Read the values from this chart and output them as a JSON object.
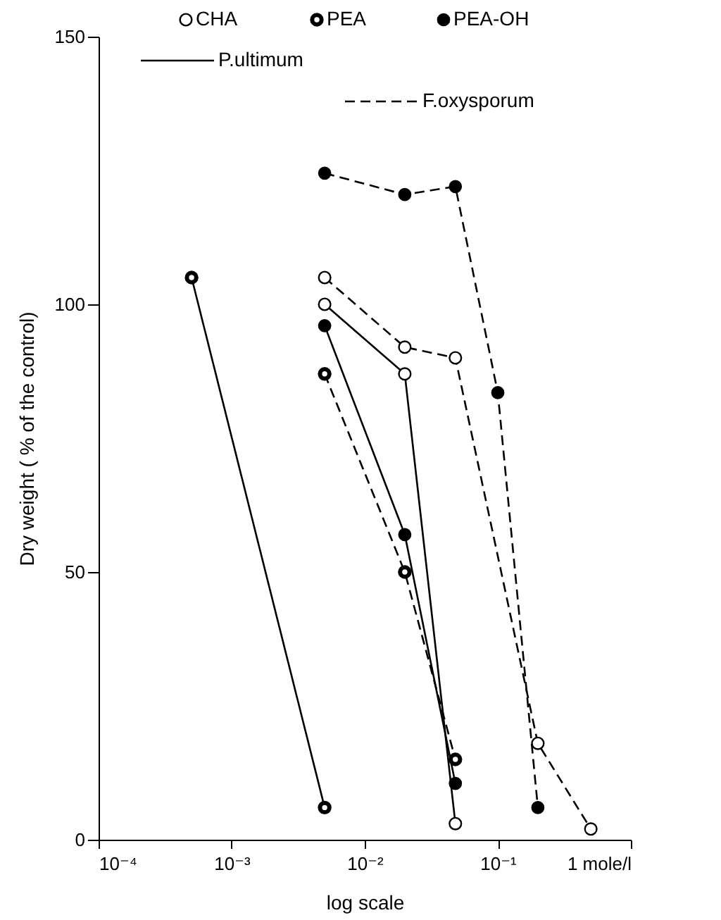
{
  "chart_data": {
    "type": "line",
    "xlabel": "log scale",
    "ylabel": "Dry weight ( % of the control)",
    "log": "x",
    "xlim": [
      0.0001,
      1
    ],
    "ylim": [
      0,
      150
    ],
    "xticks": [
      {
        "value": 0.0001,
        "label": "10⁻⁴"
      },
      {
        "value": 0.001,
        "label": "10⁻³"
      },
      {
        "value": 0.01,
        "label": "10⁻²"
      },
      {
        "value": 0.1,
        "label": "10⁻¹"
      },
      {
        "value": 1,
        "label": "1 mole/l"
      }
    ],
    "yticks": [
      0,
      50,
      100,
      150
    ],
    "legend": "top",
    "marker": "circle",
    "annotations": [
      "P.ultimum",
      "F.oxysporum"
    ],
    "series": [
      {
        "name": "CHA",
        "color": "#000000",
        "line_style": "solid",
        "x": [
          0.005,
          0.02,
          0.048
        ],
        "values": [
          100,
          87,
          3
        ]
      },
      {
        "name": "PEA",
        "color": "#000000",
        "line_style": "solid",
        "x": [
          0.0005,
          0.005
        ],
        "values": [
          105,
          6
        ]
      },
      {
        "name": "PEA-OH",
        "color": "#000000",
        "line_style": "solid",
        "x": [
          0.005,
          0.02,
          0.048
        ],
        "values": [
          96,
          57,
          10.5
        ]
      },
      {
        "color": "#000000",
        "line_style": "dashed",
        "x": [
          0.005,
          0.02,
          0.048,
          0.2,
          0.5
        ],
        "values": [
          105,
          92,
          90,
          18,
          2
        ]
      },
      {
        "color": "#000000",
        "line_style": "dashed",
        "x": [
          0.005,
          0.02,
          0.048
        ],
        "values": [
          87,
          50,
          15
        ]
      },
      {
        "color": "#000000",
        "line_style": "dashed",
        "x": [
          0.005,
          0.02,
          0.048,
          0.1,
          0.2
        ],
        "values": [
          124.5,
          120.5,
          122,
          83.5,
          6
        ]
      }
    ]
  }
}
